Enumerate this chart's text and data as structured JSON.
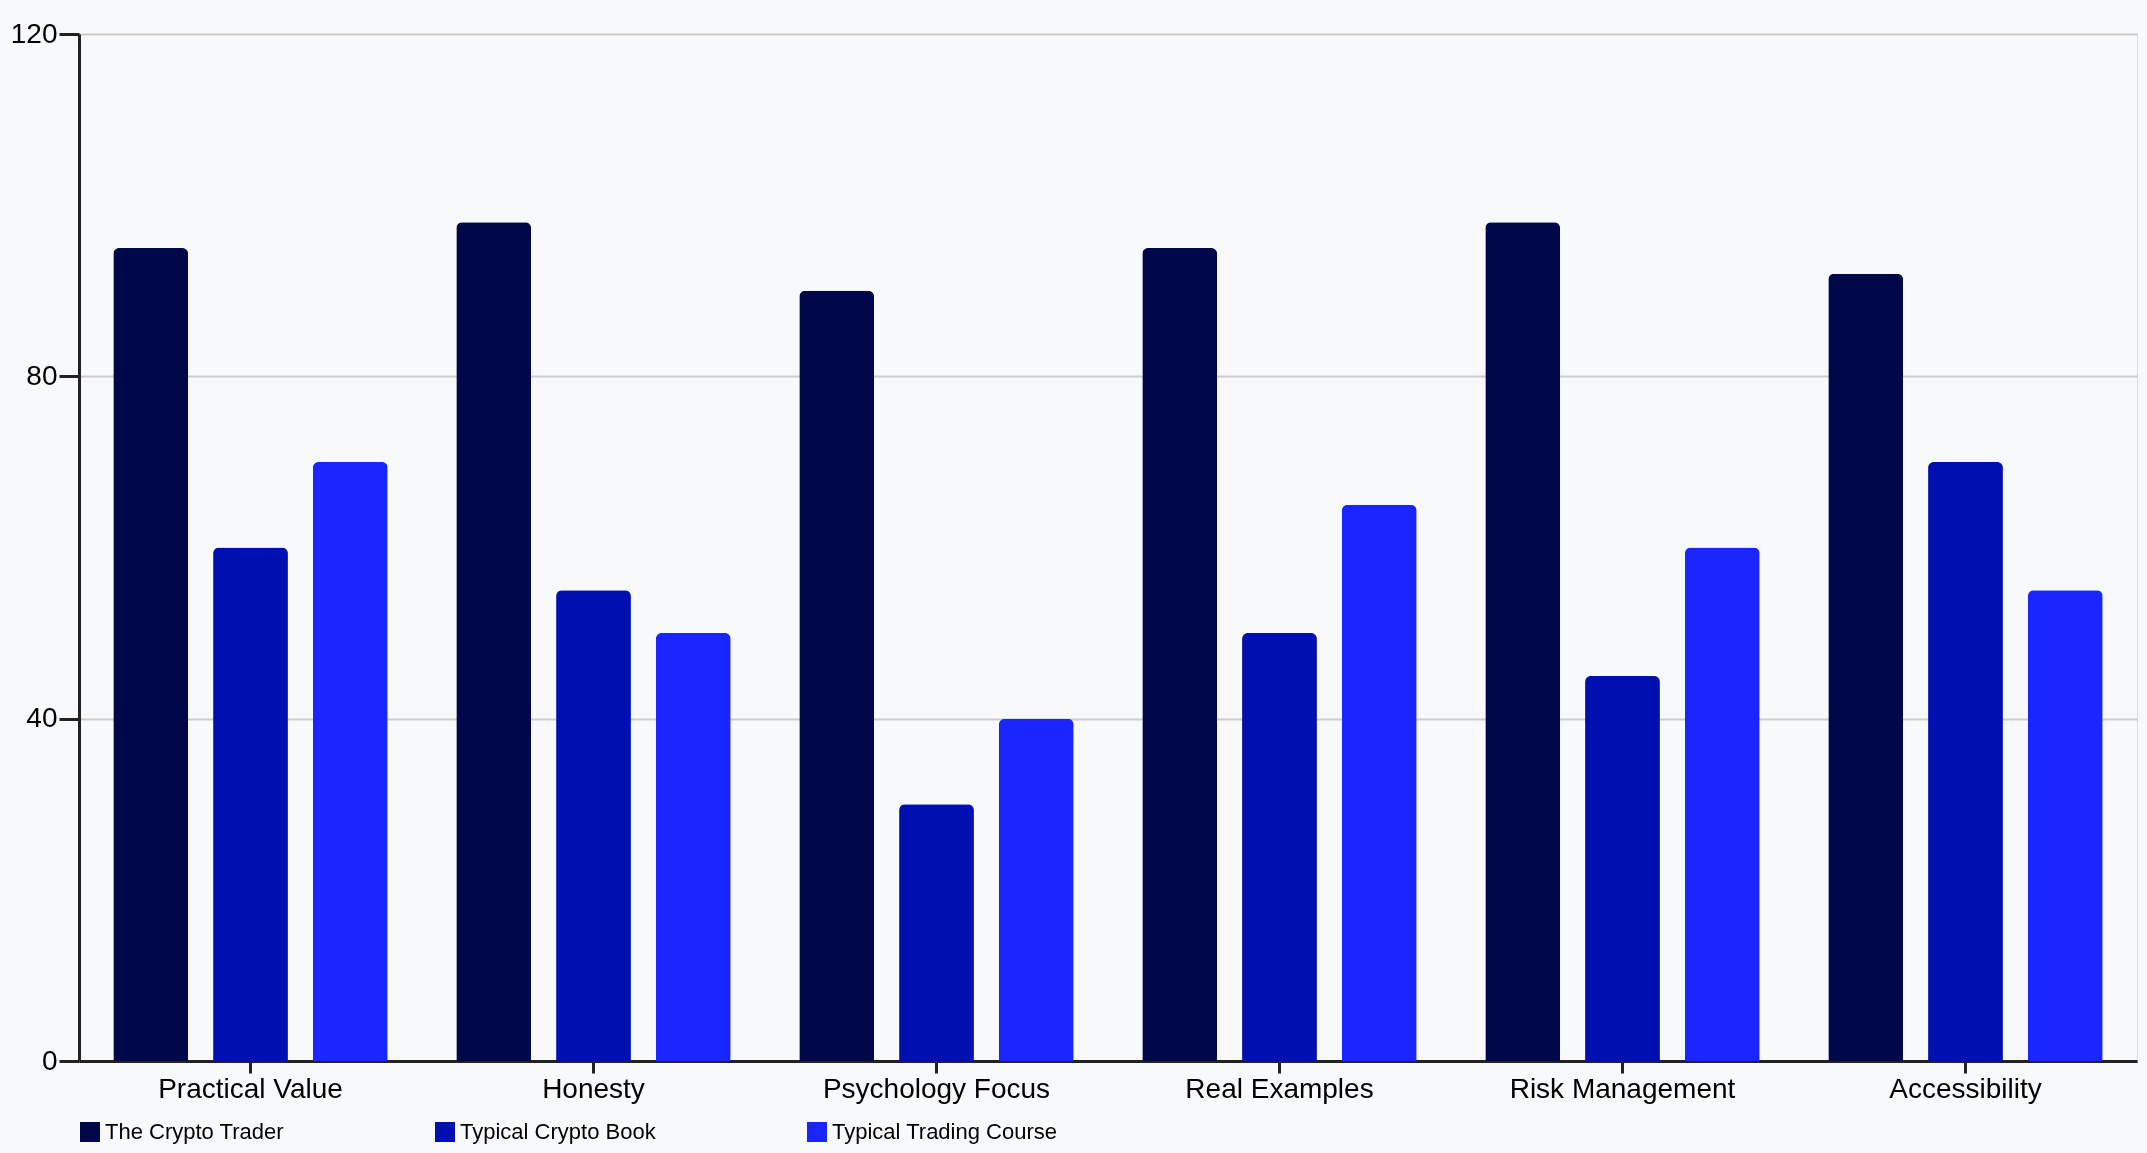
{
  "chart_data": {
    "type": "bar",
    "categories": [
      "Practical Value",
      "Honesty",
      "Psychology Focus",
      "Real Examples",
      "Risk Management",
      "Accessibility"
    ],
    "series": [
      {
        "name": "The Crypto Trader",
        "color": "#00084a",
        "values": [
          95,
          98,
          90,
          95,
          98,
          92
        ]
      },
      {
        "name": "Typical Crypto Book",
        "color": "#0010b0",
        "values": [
          60,
          55,
          30,
          50,
          45,
          70
        ]
      },
      {
        "name": "Typical Trading Course",
        "color": "#1a26ff",
        "values": [
          70,
          50,
          40,
          65,
          60,
          55
        ]
      }
    ],
    "ylim": [
      0,
      120
    ],
    "yticks": [
      0,
      40,
      80,
      120
    ],
    "grid": "y",
    "legend": "bottom"
  }
}
